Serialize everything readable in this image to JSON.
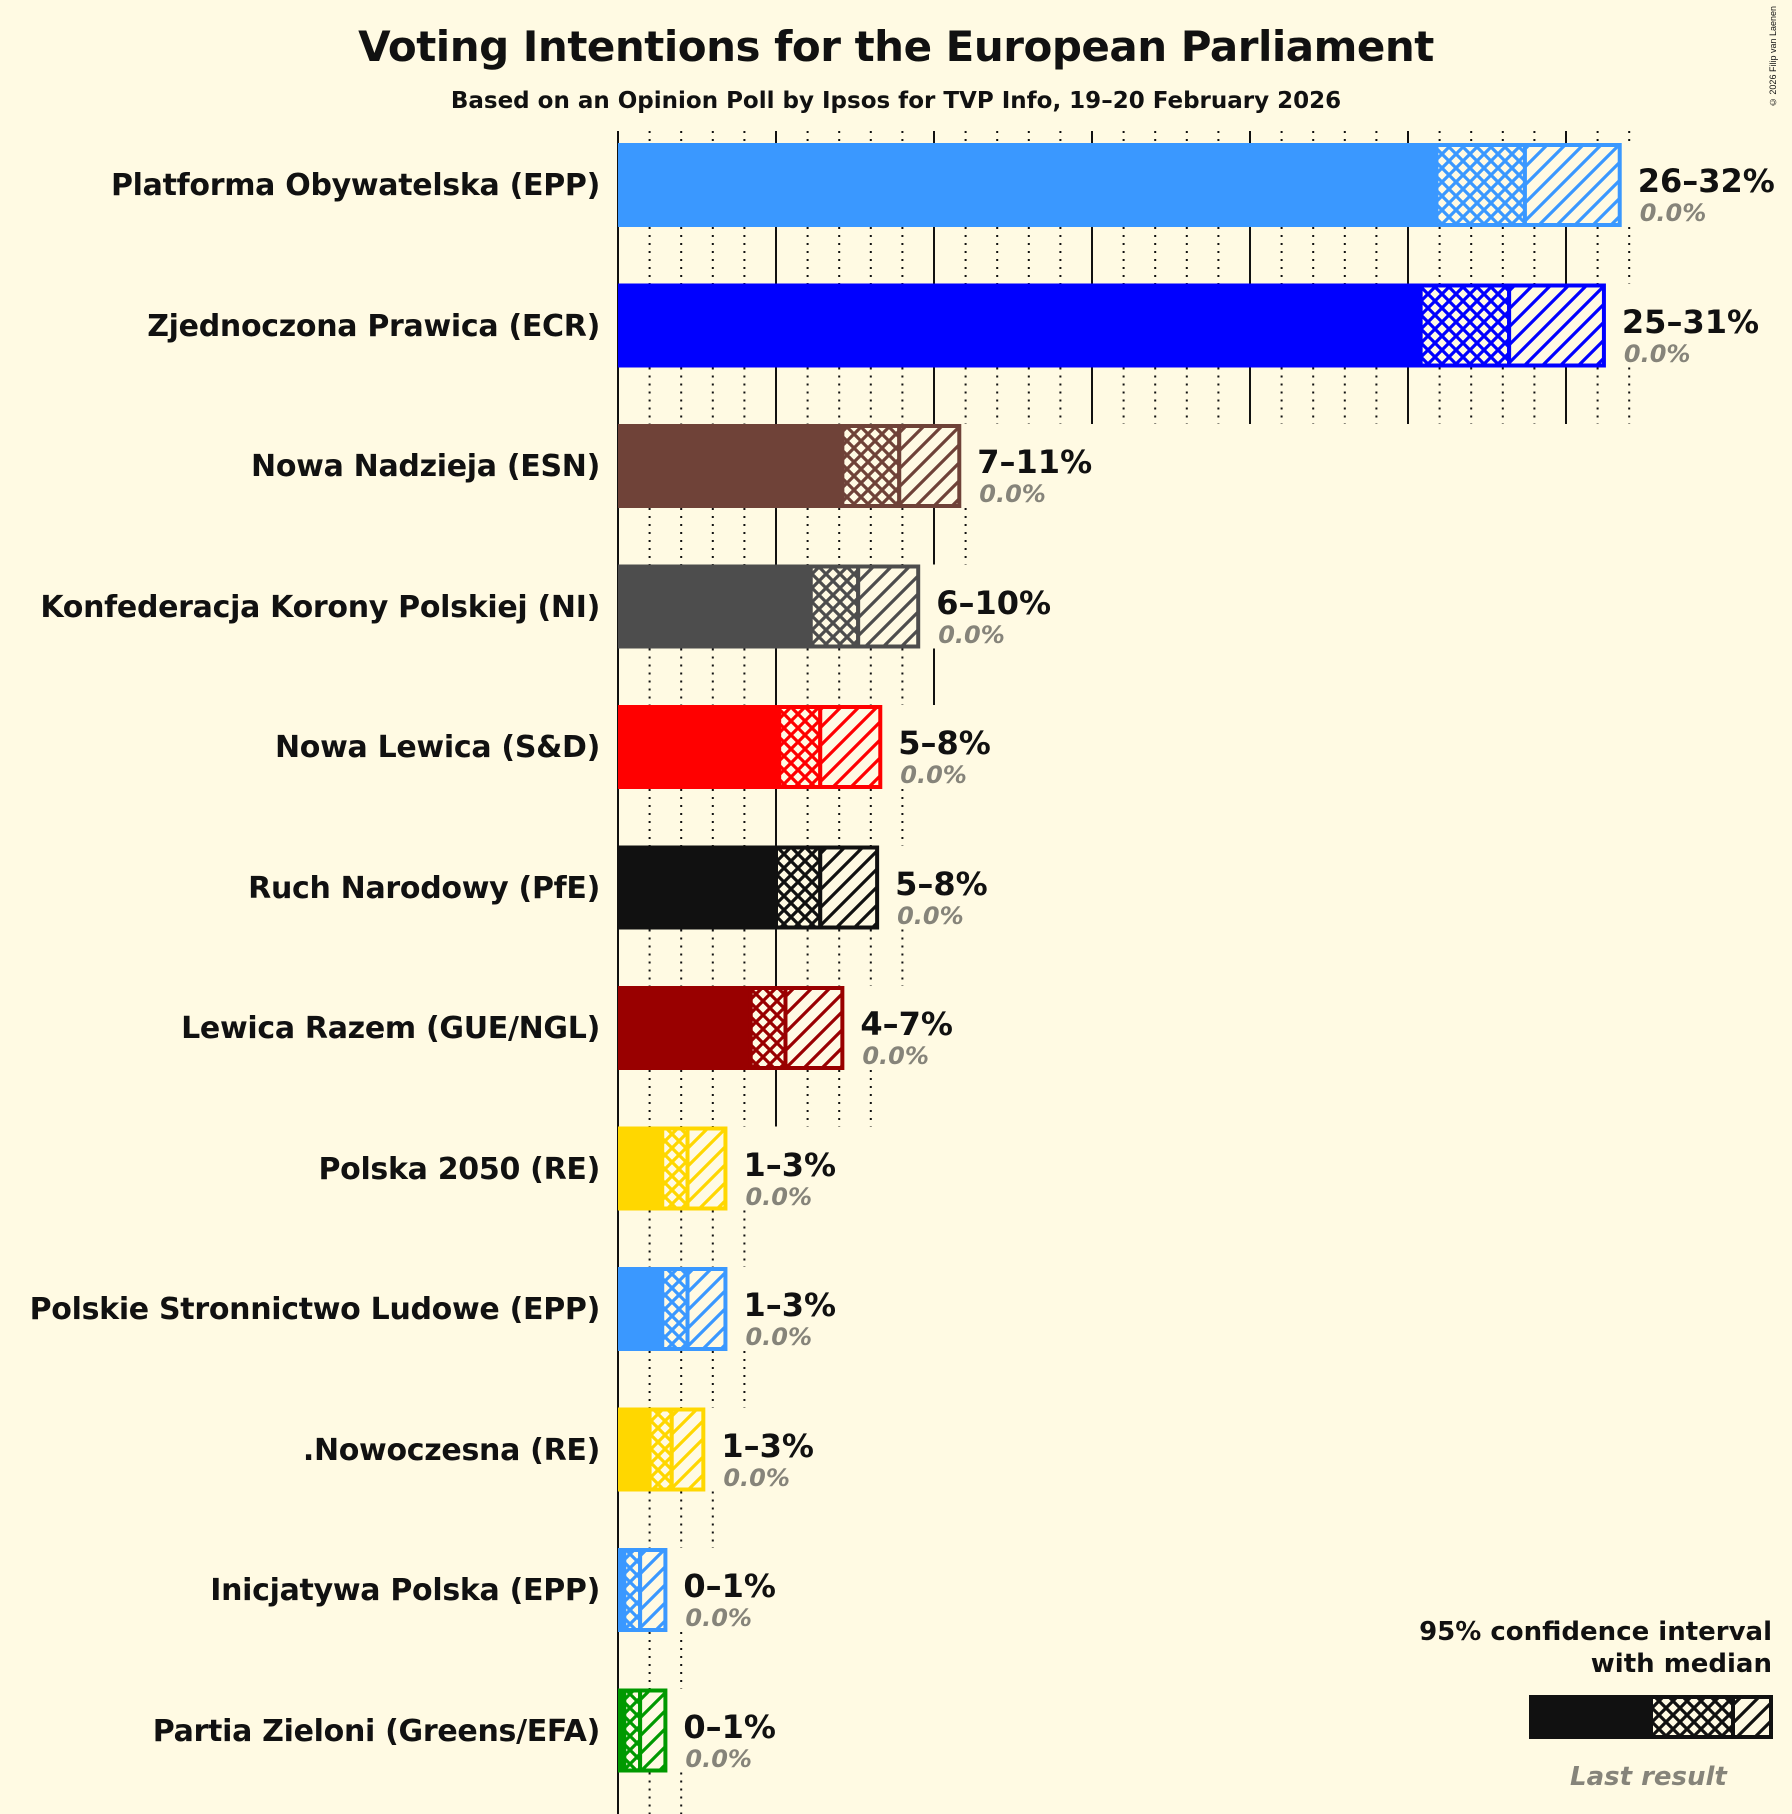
{
  "title": "Voting Intentions for the European Parliament",
  "subtitle": "Based on an Opinion Poll by Ipsos for TVP Info, 19–20 February 2026",
  "copyright": "© 2026 Filip van Laenen",
  "legend": {
    "line1": "95% confidence interval",
    "line2": "with median",
    "last_result": "Last result"
  },
  "colors": {
    "background": "#FFFAE3",
    "text": "#111111",
    "last_result": "#86847A"
  },
  "chart_data": {
    "type": "bar",
    "orientation": "horizontal",
    "title": "Voting Intentions for the European Parliament",
    "subtitle": "Based on an Opinion Poll by Ipsos for TVP Info, 19–20 February 2026",
    "xlabel": "",
    "ylabel": "",
    "xlim": [
      0,
      32
    ],
    "grid": "solid every 5%, dotted every 1%",
    "legend_position": "bottom-right",
    "categories": [
      "Platforma Obywatelska (EPP)",
      "Zjednoczona Prawica (ECR)",
      "Nowa Nadzieja (ESN)",
      "Konfederacja Korony Polskiej (NI)",
      "Nowa Lewica (S&D)",
      "Ruch Narodowy (PfE)",
      "Lewica Razem (GUE/NGL)",
      "Polska 2050 (RE)",
      "Polskie Stronnictwo Ludowe (EPP)",
      ".Nowoczesna (RE)",
      "Inicjatywa Polska (EPP)",
      "Partia Zieloni (Greens/EFA)"
    ],
    "series": [
      {
        "name": "CI low",
        "values": [
          25.9,
          25.4,
          7.1,
          6.1,
          5.1,
          5.0,
          4.2,
          1.4,
          1.4,
          1.0,
          0.2,
          0.2
        ]
      },
      {
        "name": "median",
        "values": [
          28.7,
          28.2,
          8.9,
          7.6,
          6.4,
          6.4,
          5.3,
          2.2,
          2.2,
          1.7,
          0.7,
          0.7
        ]
      },
      {
        "name": "CI high",
        "values": [
          31.7,
          31.2,
          10.8,
          9.5,
          8.3,
          8.2,
          7.1,
          3.4,
          3.4,
          2.7,
          1.5,
          1.5
        ]
      },
      {
        "name": "Last result",
        "values": [
          0,
          0,
          0,
          0,
          0,
          0,
          0,
          0,
          0,
          0,
          0,
          0
        ]
      }
    ],
    "range_labels": [
      "26–32%",
      "25–31%",
      "7–11%",
      "6–10%",
      "5–8%",
      "5–8%",
      "4–7%",
      "1–3%",
      "1–3%",
      "1–3%",
      "0–1%",
      "0–1%"
    ],
    "last_result_labels": [
      "0.0%",
      "0.0%",
      "0.0%",
      "0.0%",
      "0.0%",
      "0.0%",
      "0.0%",
      "0.0%",
      "0.0%",
      "0.0%",
      "0.0%",
      "0.0%"
    ],
    "bar_colors": [
      "#3A98FF",
      "#0000FF",
      "#6F4238",
      "#4D4D4D",
      "#FF0000",
      "#111111",
      "#990000",
      "#FFD700",
      "#3A98FF",
      "#FFD700",
      "#3A98FF",
      "#009900"
    ]
  }
}
